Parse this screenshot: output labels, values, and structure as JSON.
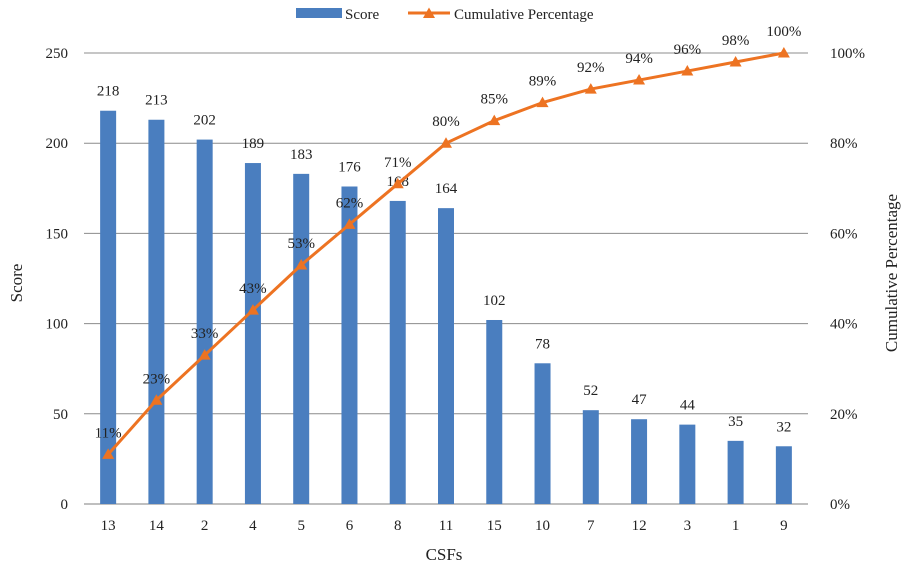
{
  "chart_data": {
    "type": "bar",
    "xlabel": "CSFs",
    "ylabel": "Score",
    "y2label": "Cumulative Percentage",
    "ylim": [
      0,
      250
    ],
    "yticks": [
      "0",
      "50",
      "100",
      "150",
      "200",
      "250"
    ],
    "y2lim": [
      0,
      100
    ],
    "y2ticks": [
      "0%",
      "20%",
      "40%",
      "60%",
      "80%",
      "100%"
    ],
    "grid": "horizontal",
    "legend": "top-center",
    "categories": [
      "13",
      "14",
      "2",
      "4",
      "5",
      "6",
      "8",
      "11",
      "15",
      "10",
      "7",
      "12",
      "3",
      "1",
      "9"
    ],
    "series": [
      {
        "name": "Score",
        "type": "bar",
        "axis": "left",
        "color": "#4a7ebf",
        "values": [
          218,
          213,
          202,
          189,
          183,
          176,
          168,
          164,
          102,
          78,
          52,
          47,
          44,
          35,
          32
        ],
        "labels": [
          "218",
          "213",
          "202",
          "189",
          "183",
          "176",
          "168",
          "164",
          "102",
          "78",
          "52",
          "47",
          "44",
          "35",
          "32"
        ]
      },
      {
        "name": "Cumulative Percentage",
        "type": "line",
        "axis": "right",
        "marker": "triangle",
        "color": "#ed7322",
        "values": [
          11,
          23,
          33,
          43,
          53,
          62,
          71,
          80,
          85,
          89,
          92,
          94,
          96,
          98,
          100
        ],
        "labels": [
          "11%",
          "23%",
          "33%",
          "43%",
          "53%",
          "62%",
          "71%",
          "80%",
          "85%",
          "89%",
          "92%",
          "94%",
          "96%",
          "98%",
          "100%"
        ]
      }
    ]
  }
}
